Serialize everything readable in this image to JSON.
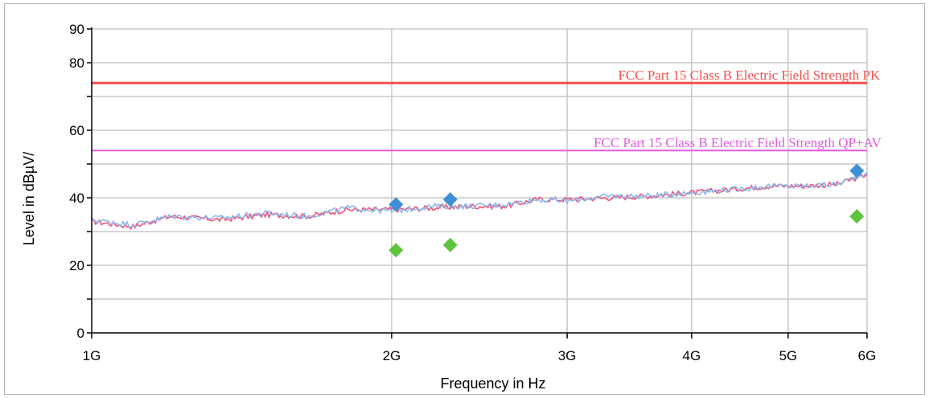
{
  "chart_data": {
    "type": "line",
    "xlabel": "Frequency in Hz",
    "ylabel": "Level in dBµV/",
    "x_scale": "log",
    "xlim": [
      1000000000,
      6000000000
    ],
    "ylim": [
      0,
      90
    ],
    "grid": true,
    "x_ticks": [
      {
        "value": 1000000000,
        "label": "1G"
      },
      {
        "value": 2000000000,
        "label": "2G"
      },
      {
        "value": 3000000000,
        "label": "3G"
      },
      {
        "value": 4000000000,
        "label": "4G"
      },
      {
        "value": 5000000000,
        "label": "5G"
      },
      {
        "value": 6000000000,
        "label": "6G"
      }
    ],
    "y_ticks": [
      {
        "value": 0,
        "label": "0"
      },
      {
        "value": 10,
        "label": ""
      },
      {
        "value": 20,
        "label": "20"
      },
      {
        "value": 30,
        "label": ""
      },
      {
        "value": 40,
        "label": "40"
      },
      {
        "value": 50,
        "label": ""
      },
      {
        "value": 60,
        "label": "60"
      },
      {
        "value": 70,
        "label": ""
      },
      {
        "value": 80,
        "label": "80"
      },
      {
        "value": 90,
        "label": "90"
      }
    ],
    "limit_lines": [
      {
        "name": "FCC Part 15 Class B Electric Field Strength PK",
        "value": 74,
        "color": "#f0504c"
      },
      {
        "name": "FCC Part 15 Class B Electric Field Strength QP+AV",
        "value": 54,
        "color": "#e45ae4"
      }
    ],
    "series": [
      {
        "color": "#f0507a",
        "x": [
          1000000000,
          1100000000,
          1200000000,
          1350000000,
          1500000000,
          1650000000,
          1800000000,
          2000000000,
          2200000000,
          2400000000,
          2600000000,
          2800000000,
          3000000000,
          3300000000,
          3600000000,
          4000000000,
          4400000000,
          4800000000,
          5200000000,
          5600000000,
          6000000000
        ],
        "y": [
          33,
          31.5,
          34.5,
          33.5,
          35,
          34.5,
          36.5,
          36.5,
          37,
          37.5,
          37.5,
          39.5,
          39.5,
          40,
          40.5,
          41.5,
          42.5,
          43.5,
          43.5,
          44,
          47
        ]
      },
      {
        "color": "#8ab8e8",
        "x": [
          1000000000,
          1100000000,
          1200000000,
          1350000000,
          1500000000,
          1650000000,
          1800000000,
          2000000000,
          2200000000,
          2400000000,
          2600000000,
          2800000000,
          3000000000,
          3300000000,
          3600000000,
          4000000000,
          4400000000,
          4800000000,
          5200000000,
          5600000000,
          6000000000
        ],
        "y": [
          33.5,
          32,
          34.5,
          34,
          35.5,
          34.5,
          37,
          36,
          37.5,
          37.5,
          38,
          39.5,
          39,
          40.5,
          40.5,
          41.5,
          42.5,
          43.5,
          43.5,
          44,
          47.5
        ]
      }
    ],
    "markers": [
      {
        "series": "peak",
        "shape": "diamond",
        "color": "#3e8fd4",
        "points": [
          {
            "x": 2020000000,
            "y": 38
          },
          {
            "x": 2290000000,
            "y": 39.5
          },
          {
            "x": 5860000000,
            "y": 48
          }
        ]
      },
      {
        "series": "average",
        "shape": "diamond",
        "color": "#5ec43c",
        "points": [
          {
            "x": 2020000000,
            "y": 24.5
          },
          {
            "x": 2290000000,
            "y": 26
          },
          {
            "x": 5860000000,
            "y": 34.5
          }
        ]
      }
    ]
  }
}
